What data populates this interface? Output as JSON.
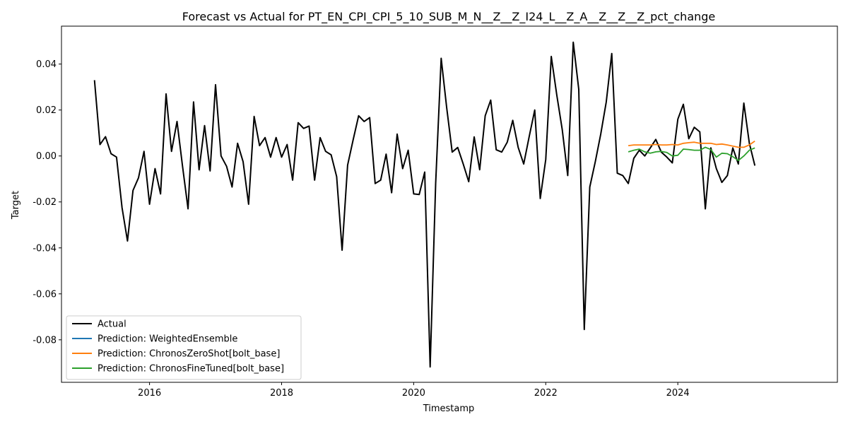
{
  "chart_data": {
    "type": "line",
    "title": "Forecast vs Actual for PT_EN_CPI_CPI_5_10_SUB_M_N__Z__Z_I24_L__Z_A__Z__Z__Z_pct_change",
    "xlabel": "Timestamp",
    "ylabel": "Target",
    "xlim": [
      "2014-09-01",
      "2026-06-01"
    ],
    "ylim": [
      -0.0985,
      0.0565
    ],
    "x_ticks": [
      "2016",
      "2018",
      "2020",
      "2022",
      "2024"
    ],
    "y_ticks": [
      "0.04",
      "0.02",
      "0.00",
      "-0.02",
      "-0.04",
      "-0.06",
      "-0.08"
    ],
    "grid": false,
    "legend_position": "lower-left",
    "series": [
      {
        "name": "Actual",
        "color": "#000000",
        "x": [
          "2015-03",
          "2015-04",
          "2015-05",
          "2015-06",
          "2015-07",
          "2015-08",
          "2015-09",
          "2015-10",
          "2015-11",
          "2015-12",
          "2016-01",
          "2016-02",
          "2016-03",
          "2016-04",
          "2016-05",
          "2016-06",
          "2016-07",
          "2016-08",
          "2016-09",
          "2016-10",
          "2016-11",
          "2016-12",
          "2017-01",
          "2017-02",
          "2017-03",
          "2017-04",
          "2017-05",
          "2017-06",
          "2017-07",
          "2017-08",
          "2017-09",
          "2017-10",
          "2017-11",
          "2017-12",
          "2018-01",
          "2018-02",
          "2018-03",
          "2018-04",
          "2018-05",
          "2018-06",
          "2018-07",
          "2018-08",
          "2018-09",
          "2018-10",
          "2018-11",
          "2018-12",
          "2019-01",
          "2019-02",
          "2019-03",
          "2019-04",
          "2019-05",
          "2019-06",
          "2019-07",
          "2019-08",
          "2019-09",
          "2019-10",
          "2019-11",
          "2019-12",
          "2020-01",
          "2020-02",
          "2020-03",
          "2020-04",
          "2020-05",
          "2020-06",
          "2020-07",
          "2020-08",
          "2020-09",
          "2020-10",
          "2020-11",
          "2020-12",
          "2021-01",
          "2021-02",
          "2021-03",
          "2021-04",
          "2021-05",
          "2021-06",
          "2021-07",
          "2021-08",
          "2021-09",
          "2021-10",
          "2021-11",
          "2021-12",
          "2022-01",
          "2022-02",
          "2022-03",
          "2022-04",
          "2022-05",
          "2022-06",
          "2022-07",
          "2022-08",
          "2022-09",
          "2022-10",
          "2022-11",
          "2022-12",
          "2023-01",
          "2023-02",
          "2023-03",
          "2023-04",
          "2023-05",
          "2023-06",
          "2023-07",
          "2023-08",
          "2023-09",
          "2023-10",
          "2023-11",
          "2023-12",
          "2024-01",
          "2024-02",
          "2024-03",
          "2024-04",
          "2024-05",
          "2024-06",
          "2024-07",
          "2024-08",
          "2024-09",
          "2024-10",
          "2024-11",
          "2024-12",
          "2025-01",
          "2025-02",
          "2025-03"
        ],
        "values": [
          0.033,
          0.005,
          0.0084,
          0.001,
          -0.0005,
          -0.0225,
          -0.037,
          -0.015,
          -0.0095,
          0.002,
          -0.021,
          -0.0055,
          -0.0165,
          0.027,
          0.002,
          0.015,
          -0.0045,
          -0.023,
          0.0235,
          -0.006,
          0.0132,
          -0.0065,
          0.031,
          0.0,
          -0.0045,
          -0.0135,
          0.0055,
          -0.0025,
          -0.021,
          0.0172,
          0.0045,
          0.008,
          -0.0005,
          0.008,
          -0.0005,
          0.005,
          -0.0105,
          0.0145,
          0.012,
          0.013,
          -0.0105,
          0.008,
          0.002,
          0.0005,
          -0.009,
          -0.041,
          -0.004,
          0.007,
          0.0175,
          0.015,
          0.0167,
          -0.012,
          -0.0105,
          0.0008,
          -0.016,
          0.0095,
          -0.0055,
          0.0025,
          -0.0165,
          -0.0168,
          -0.007,
          -0.0918,
          -0.012,
          0.0425,
          0.021,
          0.0017,
          0.0037,
          -0.0035,
          -0.0112,
          0.0083,
          -0.006,
          0.0175,
          0.0243,
          0.0027,
          0.0017,
          0.006,
          0.0155,
          0.0037,
          -0.0035,
          0.0085,
          0.02,
          -0.0185,
          -0.0015,
          0.0433,
          0.0265,
          0.0115,
          -0.0085,
          0.0495,
          0.029,
          -0.0755,
          -0.0135,
          -0.0025,
          0.0095,
          0.0235,
          0.0446,
          -0.0075,
          -0.0085,
          -0.012,
          -0.001,
          0.0025,
          0.0,
          0.0035,
          0.0072,
          0.0017,
          -0.0005,
          -0.003,
          0.016,
          0.0225,
          0.0075,
          0.0125,
          0.0105,
          -0.023,
          0.0035,
          -0.0055,
          -0.0115,
          -0.0085,
          0.0035,
          -0.0035,
          0.023,
          0.0055,
          -0.0042
        ]
      },
      {
        "name": "Prediction: WeightedEnsemble",
        "color": "#1f77b4",
        "x": [],
        "values": []
      },
      {
        "name": "Prediction: ChronosZeroShot[bolt_base]",
        "color": "#ff7f0e",
        "x": [
          "2023-04",
          "2023-05",
          "2023-06",
          "2023-07",
          "2023-08",
          "2023-09",
          "2023-10",
          "2023-11",
          "2023-12",
          "2024-01",
          "2024-02",
          "2024-03",
          "2024-04",
          "2024-05",
          "2024-06",
          "2024-07",
          "2024-08",
          "2024-09",
          "2024-10",
          "2024-11",
          "2024-12",
          "2025-01",
          "2025-02",
          "2025-03"
        ],
        "values": [
          0.0045,
          0.0048,
          0.0048,
          0.0048,
          0.0048,
          0.005,
          0.0048,
          0.0048,
          0.005,
          0.0048,
          0.0055,
          0.0058,
          0.006,
          0.0055,
          0.0055,
          0.0055,
          0.005,
          0.0052,
          0.0048,
          0.0043,
          0.0038,
          0.0038,
          0.0048,
          0.0065
        ]
      },
      {
        "name": "Prediction: ChronosFineTuned[bolt_base]",
        "color": "#2ca02c",
        "x": [
          "2023-04",
          "2023-05",
          "2023-06",
          "2023-07",
          "2023-08",
          "2023-09",
          "2023-10",
          "2023-11",
          "2023-12",
          "2024-01",
          "2024-02",
          "2024-03",
          "2024-04",
          "2024-05",
          "2024-06",
          "2024-07",
          "2024-08",
          "2024-09",
          "2024-10",
          "2024-11",
          "2024-12",
          "2025-01",
          "2025-02",
          "2025-03"
        ],
        "values": [
          0.0018,
          0.0025,
          0.003,
          0.0018,
          0.0012,
          0.0018,
          0.002,
          0.0015,
          0.0,
          0.0003,
          0.003,
          0.0028,
          0.0025,
          0.0025,
          0.0038,
          0.0028,
          -0.0005,
          0.0012,
          0.001,
          -0.0003,
          -0.002,
          0.0,
          0.0025,
          0.0035
        ]
      }
    ]
  }
}
